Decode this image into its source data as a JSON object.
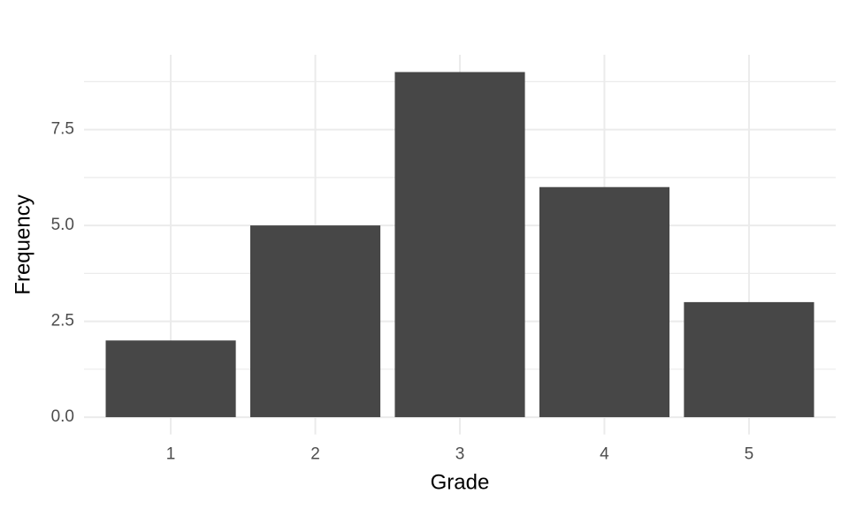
{
  "chart_data": {
    "type": "bar",
    "x_label": "Grade",
    "y_label": "Frequency",
    "categories": [
      "1",
      "2",
      "3",
      "4",
      "5"
    ],
    "values": [
      2,
      5,
      9,
      6,
      3
    ],
    "color": "#474747",
    "ylim": [
      -0.45,
      9.45
    ],
    "yticks": [
      {
        "value": 0,
        "label": "0.0"
      },
      2.5,
      {
        "value": 5,
        "label": "5.0"
      },
      7.5
    ],
    "minor_yticks": [
      1.25,
      3.75,
      6.25,
      8.75
    ],
    "grid": true
  }
}
